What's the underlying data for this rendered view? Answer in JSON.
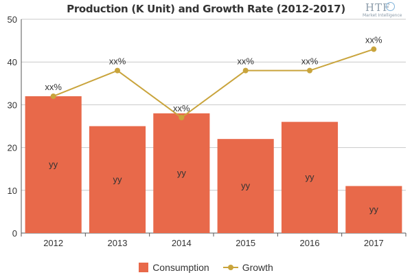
{
  "chart_data": {
    "type": "bar",
    "title": "Production (K Unit) and Growth Rate (2012-2017)",
    "categories": [
      "2012",
      "2013",
      "2014",
      "2015",
      "2016",
      "2017"
    ],
    "ylim": [
      0,
      50
    ],
    "yticks": [
      "0",
      "10",
      "20",
      "30",
      "40",
      "50"
    ],
    "grid": true,
    "legend_position": "bottom-center",
    "series": [
      {
        "name": "Consumption",
        "type": "bar",
        "color": "#e8694a",
        "values": [
          32,
          25,
          28,
          22,
          26,
          11
        ],
        "labels": [
          "yy",
          "yy",
          "yy",
          "yy",
          "yy",
          "yy"
        ]
      },
      {
        "name": "Growth",
        "type": "line",
        "color": "#c9a43c",
        "values": [
          32,
          38,
          27,
          38,
          38,
          43
        ],
        "labels": [
          "xx%",
          "xx%",
          "xx%",
          "xx%",
          "xx%",
          "xx%"
        ]
      }
    ]
  },
  "logo": {
    "name": "HTF",
    "subtitle": "Market Intelligence"
  }
}
